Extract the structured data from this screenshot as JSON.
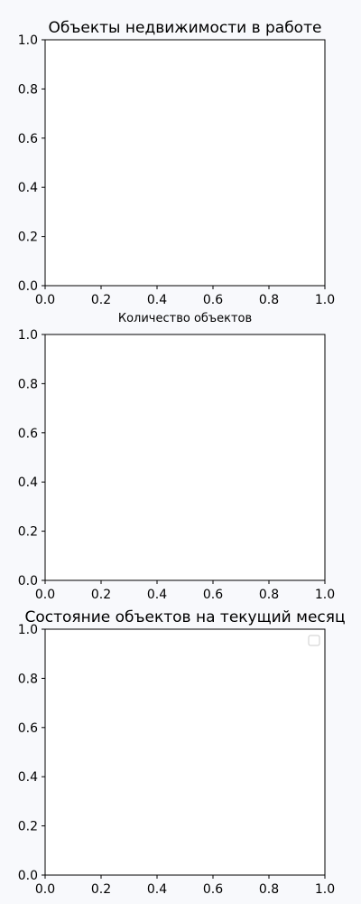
{
  "background_color": "#f8f9fc",
  "chart_data": [
    {
      "type": "empty",
      "title": "Объекты недвижимости в работе",
      "xlabel": "Количество объектов",
      "ylabel": "",
      "xlim": [
        0,
        1
      ],
      "ylim": [
        0,
        1
      ],
      "xticks": [
        "0.0",
        "0.2",
        "0.4",
        "0.6",
        "0.8",
        "1.0"
      ],
      "yticks": [
        "0.0",
        "0.2",
        "0.4",
        "0.6",
        "0.8",
        "1.0"
      ],
      "legend": false,
      "grid": false,
      "series": []
    },
    {
      "type": "empty",
      "title": "",
      "xlabel": "",
      "ylabel": "",
      "xlim": [
        0,
        1
      ],
      "ylim": [
        0,
        1
      ],
      "xticks": [
        "0.0",
        "0.2",
        "0.4",
        "0.6",
        "0.8",
        "1.0"
      ],
      "yticks": [
        "0.0",
        "0.2",
        "0.4",
        "0.6",
        "0.8",
        "1.0"
      ],
      "legend": false,
      "grid": false,
      "series": []
    },
    {
      "type": "empty",
      "title": "Состояние объектов на текущий месяц",
      "xlabel": "",
      "ylabel": "",
      "xlim": [
        0,
        1
      ],
      "ylim": [
        0,
        1
      ],
      "xticks": [
        "0.0",
        "0.2",
        "0.4",
        "0.6",
        "0.8",
        "1.0"
      ],
      "yticks": [
        "0.0",
        "0.2",
        "0.4",
        "0.6",
        "0.8",
        "1.0"
      ],
      "legend": true,
      "legend_position": "top-right",
      "grid": false,
      "series": []
    }
  ]
}
